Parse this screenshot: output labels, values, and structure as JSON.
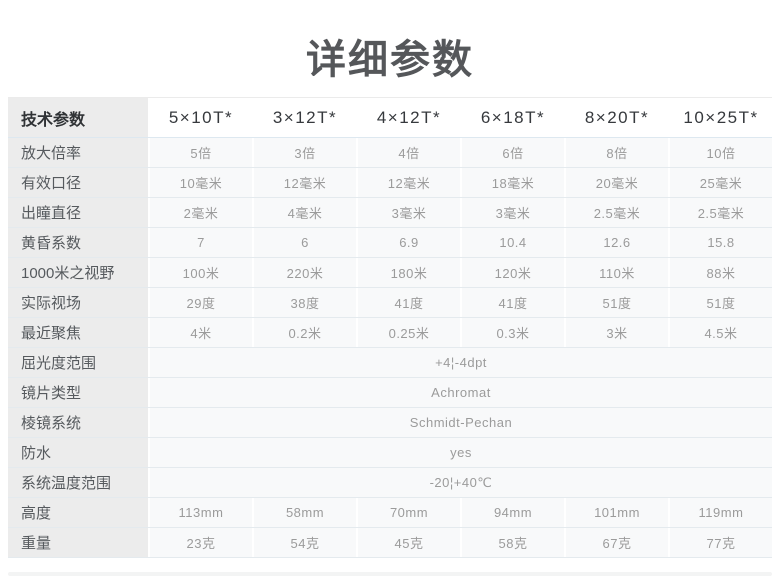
{
  "page": {
    "title": "详细参数"
  },
  "table": {
    "header": {
      "label": "技术参数",
      "models": [
        "5×10T*",
        "3×12T*",
        "4×12T*",
        "6×18T*",
        "8×20T*",
        "10×25T*"
      ]
    },
    "rows": [
      {
        "label": "放大倍率",
        "values": [
          "5倍",
          "3倍",
          "4倍",
          "6倍",
          "8倍",
          "10倍"
        ]
      },
      {
        "label": "有效口径",
        "values": [
          "10毫米",
          "12毫米",
          "12毫米",
          "18毫米",
          "20毫米",
          "25毫米"
        ]
      },
      {
        "label": "出瞳直径",
        "values": [
          "2毫米",
          "4毫米",
          "3毫米",
          "3毫米",
          "2.5毫米",
          "2.5毫米"
        ]
      },
      {
        "label": "黄昏系数",
        "values": [
          "7",
          "6",
          "6.9",
          "10.4",
          "12.6",
          "15.8"
        ]
      },
      {
        "label": "1000米之视野",
        "values": [
          "100米",
          "220米",
          "180米",
          "120米",
          "110米",
          "88米"
        ]
      },
      {
        "label": "实际视场",
        "values": [
          "29度",
          "38度",
          "41度",
          "41度",
          "51度",
          "51度"
        ]
      },
      {
        "label": "最近聚焦",
        "values": [
          "4米",
          "0.2米",
          "0.25米",
          "0.3米",
          "3米",
          "4.5米"
        ]
      },
      {
        "label": "屈光度范围",
        "span": "+4¦-4dpt"
      },
      {
        "label": "镜片类型",
        "span": "Achromat"
      },
      {
        "label": "棱镜系统",
        "span": "Schmidt-Pechan"
      },
      {
        "label": "防水",
        "span": "yes"
      },
      {
        "label": "系统温度范围",
        "span": "-20¦+40℃"
      },
      {
        "label": "高度",
        "values": [
          "113mm",
          "58mm",
          "70mm",
          "94mm",
          "101mm",
          "119mm"
        ]
      },
      {
        "label": "重量",
        "values": [
          "23克",
          "54克",
          "45克",
          "58克",
          "67克",
          "77克"
        ]
      }
    ]
  },
  "colors": {
    "title_text": "#55575a",
    "header_text": "#36393d",
    "label_column_bg": "#ececec",
    "label_text": "#565a5e",
    "value_cell_bg": "#f8f9fa",
    "value_text": "#9b9b9b",
    "row_divider": "#e4eaee",
    "header_divider": "#dde8f0"
  }
}
